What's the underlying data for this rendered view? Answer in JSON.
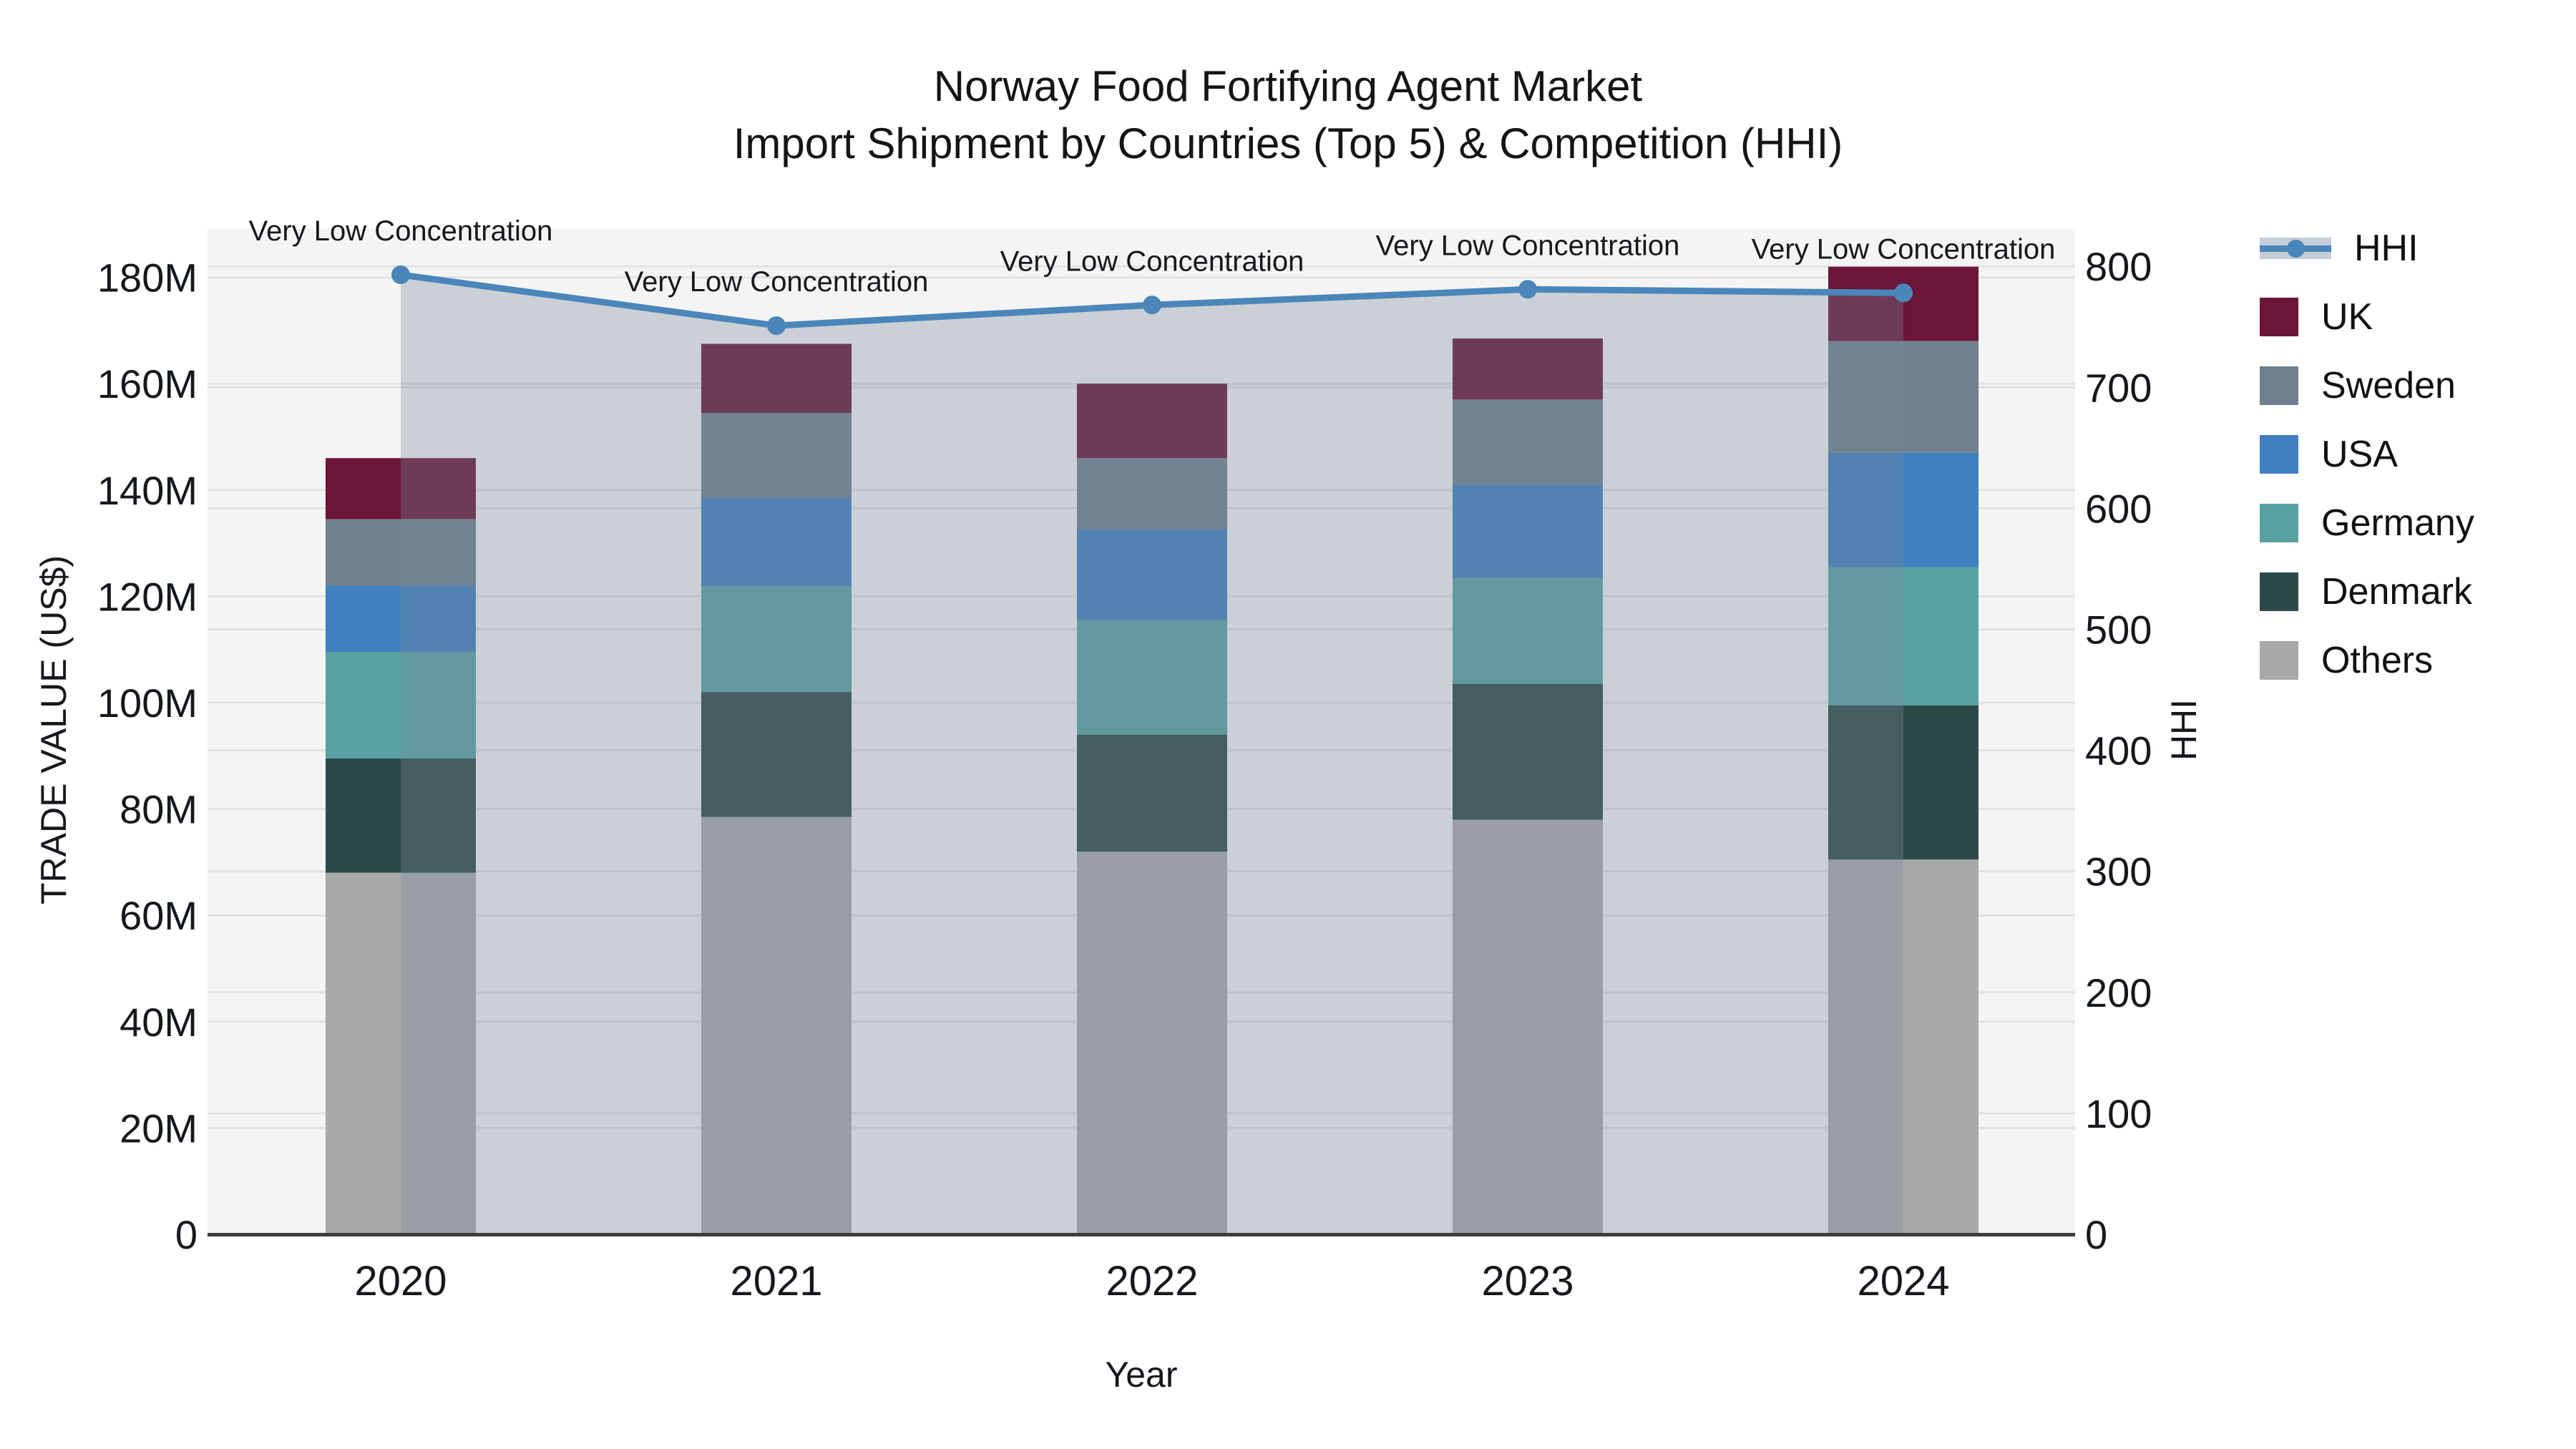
{
  "title": {
    "line1": "Norway Food Fortifying Agent Market",
    "line2": "Import Shipment by Countries (Top 5) & Competition (HHI)"
  },
  "axes": {
    "x_title": "Year",
    "y_left_title": "TRADE VALUE (US$)",
    "y_right_title": "HHI",
    "y_left_tick_labels": [
      "0",
      "20M",
      "40M",
      "60M",
      "80M",
      "100M",
      "120M",
      "140M",
      "160M",
      "180M"
    ],
    "y_right_tick_labels": [
      "0",
      "100",
      "200",
      "300",
      "400",
      "500",
      "600",
      "700",
      "800"
    ]
  },
  "chart_data": {
    "type": "bar",
    "subtype": "stacked-bars-with-line-overlay",
    "categories": [
      "2020",
      "2021",
      "2022",
      "2023",
      "2024"
    ],
    "bar_unit": "million US$",
    "series": [
      {
        "name": "Others",
        "color": "#a9a9a9",
        "values": [
          68,
          78.5,
          72,
          78,
          70.5
        ]
      },
      {
        "name": "Denmark",
        "color": "#2c4a48",
        "values": [
          21.5,
          23.5,
          22,
          25.5,
          29
        ]
      },
      {
        "name": "Germany",
        "color": "#58a1a3",
        "values": [
          20,
          20,
          21.5,
          20,
          26
        ]
      },
      {
        "name": "USA",
        "color": "#4080c0",
        "values": [
          12.5,
          16.5,
          17,
          17.5,
          21.5
        ]
      },
      {
        "name": "Sweden",
        "color": "#71808f",
        "values": [
          12.5,
          16,
          13.5,
          16,
          21
        ]
      },
      {
        "name": "UK",
        "color": "#6b1638",
        "values": [
          11.5,
          13,
          14,
          11.5,
          14
        ]
      }
    ],
    "line": {
      "name": "HHI",
      "color": "#4a86ba",
      "area_color": "rgba(119,136,153,0.33)",
      "values": [
        793,
        751,
        768,
        781,
        778
      ]
    },
    "annotations": [
      "Very Low Concentration",
      "Very Low Concentration",
      "Very Low Concentration",
      "Very Low Concentration",
      "Very Low Concentration"
    ],
    "y_left_range": [
      0,
      189
    ],
    "y_right_range": [
      0,
      831
    ],
    "grid": "on",
    "legend_position": "right-outside"
  },
  "legend": {
    "items": [
      {
        "label": "HHI",
        "color": "#4a86ba",
        "band_color": "#c3ccd7",
        "type": "line"
      },
      {
        "label": "UK",
        "color": "#6b1638",
        "type": "square"
      },
      {
        "label": "Sweden",
        "color": "#71808f",
        "type": "square"
      },
      {
        "label": "USA",
        "color": "#4080c0",
        "type": "square"
      },
      {
        "label": "Germany",
        "color": "#58a1a3",
        "type": "square"
      },
      {
        "label": "Denmark",
        "color": "#2c4a48",
        "type": "square"
      },
      {
        "label": "Others",
        "color": "#a9a9a9",
        "type": "square"
      }
    ]
  }
}
